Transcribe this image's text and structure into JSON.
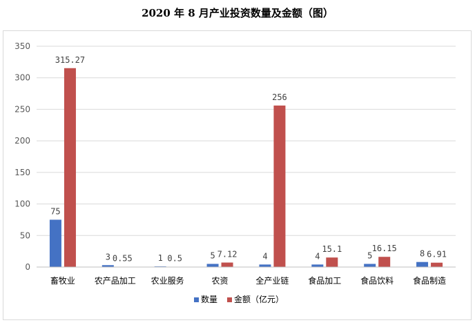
{
  "chart_data": {
    "type": "bar",
    "title": "2020 年 8 月产业投资数量及金额（图）",
    "categories": [
      "畜牧业",
      "农产品加工",
      "农业服务",
      "农资",
      "全产业链",
      "食品加工",
      "食品饮料",
      "食品制造"
    ],
    "series": [
      {
        "name": "数量",
        "color": "#4472C4",
        "values": [
          75,
          3,
          1,
          5,
          4,
          4,
          5,
          8
        ],
        "labels": [
          "75",
          "3",
          "1",
          "5",
          "4",
          "4",
          "5",
          "8"
        ]
      },
      {
        "name": "金额（亿元）",
        "color": "#C0504D",
        "values": [
          315.27,
          0.55,
          0.5,
          7.12,
          256,
          15.1,
          16.15,
          6.91
        ],
        "labels": [
          "315.27",
          "0.55",
          "0.5",
          "7.12",
          "256",
          "15.1",
          "16.15",
          "6.91"
        ]
      }
    ],
    "ylim": [
      0,
      350
    ],
    "yticks": [
      0,
      50,
      100,
      150,
      200,
      250,
      300,
      350
    ],
    "grid": true,
    "legend": "bottom"
  }
}
